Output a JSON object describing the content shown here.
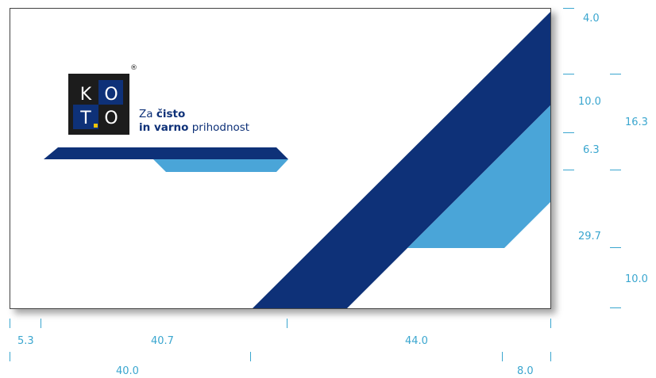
{
  "brand": {
    "logo_letters": [
      "K",
      "O",
      "T",
      "O"
    ],
    "registered_mark": "®",
    "tagline_line1_prefix": "Za",
    "tagline_line1_bold": "čisto",
    "tagline_line2_bold": "in varno",
    "tagline_line2_rest": "prihodnost"
  },
  "colors": {
    "dark_blue": "#0e3178",
    "light_blue": "#4aa5d8",
    "dimension": "#3aa6cf",
    "logo_bg": "#1c1c1c"
  },
  "dimensions": {
    "right_inner": [
      "4.0",
      "10.0",
      "6.3",
      "29.7"
    ],
    "right_outer": [
      "16.3",
      "10.0"
    ],
    "bottom_row1": [
      "5.3",
      "40.7",
      "44.0"
    ],
    "bottom_row2": [
      "40.0",
      "8.0"
    ]
  }
}
